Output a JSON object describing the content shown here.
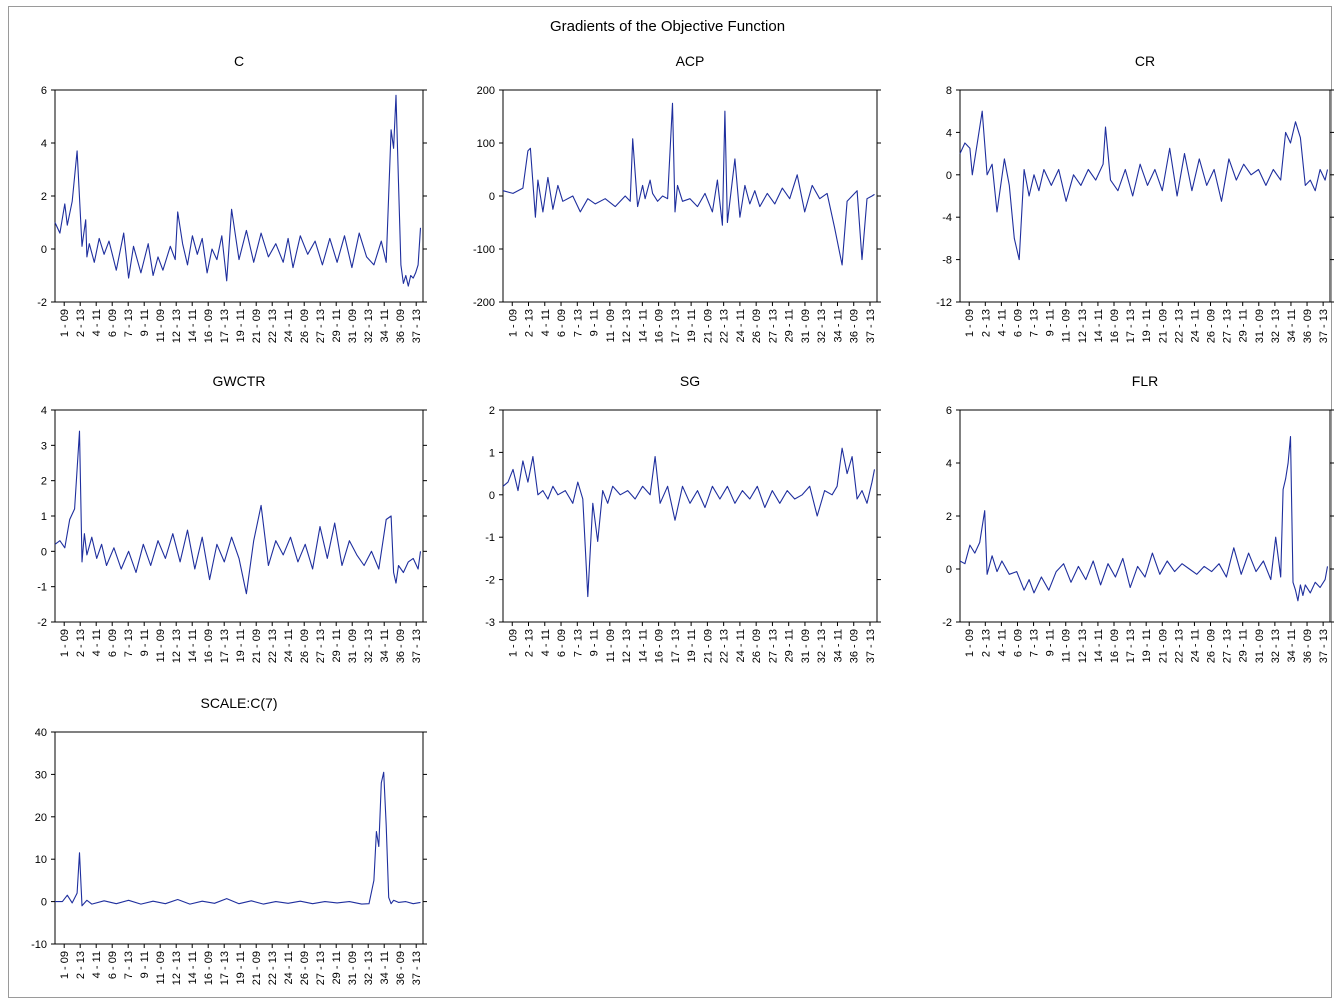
{
  "title": "Gradients of the Objective Function",
  "x_tick_labels": [
    "1 - 09",
    "2 - 13",
    "4 - 11",
    "6 - 09",
    "7 - 13",
    "9 - 11",
    "11 - 09",
    "12 - 13",
    "14 - 11",
    "16 - 09",
    "17 - 13",
    "19 - 11",
    "21 - 09",
    "22 - 13",
    "24 - 11",
    "26 - 09",
    "27 - 13",
    "29 - 11",
    "31 - 09",
    "32 - 13",
    "34 - 11",
    "36 - 09",
    "37 - 13"
  ],
  "chart_data": [
    {
      "type": "line",
      "title": "C",
      "ylim": [
        -2,
        6
      ],
      "yticks": [
        -2,
        0,
        2,
        4,
        6
      ],
      "color": "#1f2f9e",
      "series": [
        {
          "x_index": [
            0,
            4,
            8,
            10,
            14,
            18,
            22,
            25,
            26,
            28,
            32,
            36,
            40,
            44,
            50,
            56,
            60,
            64,
            70,
            76,
            80,
            84,
            88,
            94,
            98,
            100,
            104,
            108,
            112,
            116,
            120,
            124,
            128,
            132,
            136,
            140,
            144,
            150,
            156,
            162,
            168,
            174,
            180,
            186,
            190,
            194,
            200,
            206,
            212,
            218,
            224,
            230,
            236,
            242,
            248,
            254,
            260,
            266,
            270,
            274,
            276,
            278,
            280,
            282,
            284,
            286,
            288,
            290,
            292,
            294,
            296,
            298
          ],
          "values": [
            1.0,
            0.6,
            1.7,
            0.9,
            1.8,
            3.7,
            0.1,
            1.1,
            -0.3,
            0.2,
            -0.5,
            0.4,
            -0.2,
            0.3,
            -0.8,
            0.6,
            -1.1,
            0.1,
            -0.9,
            0.2,
            -1.0,
            -0.3,
            -0.8,
            0.1,
            -0.4,
            1.4,
            0.2,
            -0.6,
            0.5,
            -0.2,
            0.4,
            -0.9,
            0.0,
            -0.4,
            0.5,
            -1.2,
            1.5,
            -0.4,
            0.7,
            -0.5,
            0.6,
            -0.3,
            0.2,
            -0.5,
            0.4,
            -0.7,
            0.5,
            -0.2,
            0.3,
            -0.6,
            0.4,
            -0.5,
            0.5,
            -0.7,
            0.6,
            -0.3,
            -0.6,
            0.3,
            -0.5,
            4.5,
            3.8,
            5.8,
            2.5,
            -0.6,
            -1.3,
            -1.0,
            -1.4,
            -1.0,
            -1.1,
            -0.9,
            -0.6,
            0.8
          ]
        }
      ]
    },
    {
      "type": "line",
      "title": "ACP",
      "ylim": [
        -200,
        200
      ],
      "yticks": [
        -200,
        -100,
        0,
        100,
        200
      ],
      "color": "#1f2f9e",
      "series": [
        {
          "x_index": [
            0,
            8,
            16,
            20,
            22,
            26,
            28,
            32,
            36,
            40,
            44,
            48,
            56,
            62,
            68,
            74,
            82,
            90,
            98,
            102,
            104,
            108,
            112,
            114,
            118,
            120,
            124,
            128,
            132,
            136,
            138,
            140,
            144,
            150,
            156,
            162,
            168,
            172,
            176,
            178,
            180,
            186,
            190,
            194,
            198,
            202,
            206,
            212,
            218,
            224,
            230,
            236,
            242,
            248,
            254,
            260,
            266,
            272,
            276,
            280,
            284,
            288,
            292,
            296,
            298
          ],
          "values": [
            10,
            5,
            15,
            85,
            90,
            -40,
            30,
            -30,
            35,
            -25,
            20,
            -10,
            0,
            -30,
            -5,
            -15,
            -5,
            -20,
            0,
            -10,
            108,
            -20,
            20,
            -5,
            30,
            5,
            -10,
            0,
            -5,
            175,
            -30,
            20,
            -10,
            -5,
            -20,
            5,
            -30,
            30,
            -55,
            160,
            -50,
            70,
            -40,
            20,
            -15,
            10,
            -20,
            5,
            -15,
            15,
            -5,
            40,
            -30,
            20,
            -5,
            5,
            -60,
            -130,
            -10,
            0,
            10,
            -120,
            -5,
            0,
            3
          ]
        }
      ]
    },
    {
      "type": "line",
      "title": "CR",
      "ylim": [
        -12,
        8
      ],
      "yticks": [
        -12,
        -8,
        -4,
        0,
        4,
        8
      ],
      "color": "#1f2f9e",
      "series": [
        {
          "x_index": [
            0,
            4,
            8,
            10,
            14,
            18,
            22,
            26,
            30,
            36,
            40,
            44,
            48,
            52,
            56,
            60,
            64,
            68,
            74,
            80,
            86,
            92,
            98,
            104,
            110,
            116,
            118,
            122,
            128,
            134,
            140,
            146,
            152,
            158,
            164,
            170,
            176,
            182,
            188,
            194,
            200,
            206,
            212,
            218,
            224,
            230,
            236,
            242,
            248,
            254,
            260,
            264,
            268,
            272,
            276,
            280,
            284,
            288,
            292,
            296,
            298
          ],
          "values": [
            2.0,
            3.0,
            2.5,
            0.0,
            3.0,
            6.0,
            0.0,
            1.0,
            -3.5,
            1.5,
            -1.0,
            -6.0,
            -8.0,
            0.5,
            -2.0,
            0.0,
            -1.5,
            0.5,
            -1.0,
            0.5,
            -2.5,
            0.0,
            -1.0,
            0.5,
            -0.5,
            1.0,
            4.5,
            -0.5,
            -1.5,
            0.5,
            -2.0,
            1.0,
            -1.0,
            0.5,
            -1.5,
            2.5,
            -2.0,
            2.0,
            -1.5,
            1.5,
            -1.0,
            0.5,
            -2.5,
            1.5,
            -0.5,
            1.0,
            0.0,
            0.5,
            -1.0,
            0.5,
            -0.5,
            4.0,
            3.0,
            5.0,
            3.5,
            -1.0,
            -0.5,
            -1.5,
            0.5,
            -0.5,
            0.5
          ]
        }
      ]
    },
    {
      "type": "line",
      "title": "GWCTR",
      "ylim": [
        -2,
        4
      ],
      "yticks": [
        -2,
        -1,
        0,
        1,
        2,
        3,
        4
      ],
      "color": "#1f2f9e",
      "series": [
        {
          "x_index": [
            0,
            4,
            8,
            12,
            16,
            20,
            22,
            24,
            26,
            30,
            34,
            38,
            42,
            48,
            54,
            60,
            66,
            72,
            78,
            84,
            90,
            96,
            102,
            108,
            114,
            120,
            126,
            132,
            138,
            144,
            150,
            156,
            162,
            168,
            174,
            180,
            186,
            192,
            198,
            204,
            210,
            216,
            222,
            228,
            234,
            240,
            246,
            252,
            258,
            264,
            270,
            274,
            276,
            278,
            280,
            284,
            288,
            292,
            296,
            298
          ],
          "values": [
            0.2,
            0.3,
            0.1,
            0.9,
            1.2,
            3.4,
            -0.3,
            0.5,
            -0.1,
            0.4,
            -0.2,
            0.2,
            -0.4,
            0.1,
            -0.5,
            0.0,
            -0.6,
            0.2,
            -0.4,
            0.3,
            -0.2,
            0.5,
            -0.3,
            0.6,
            -0.5,
            0.4,
            -0.8,
            0.2,
            -0.3,
            0.4,
            -0.2,
            -1.2,
            0.3,
            1.3,
            -0.4,
            0.3,
            -0.1,
            0.4,
            -0.3,
            0.2,
            -0.5,
            0.7,
            -0.2,
            0.8,
            -0.4,
            0.3,
            -0.1,
            -0.4,
            0.0,
            -0.5,
            0.9,
            1.0,
            -0.6,
            -0.9,
            -0.4,
            -0.6,
            -0.3,
            -0.2,
            -0.5,
            0.0
          ]
        }
      ]
    },
    {
      "type": "line",
      "title": "SG",
      "ylim": [
        -3,
        2
      ],
      "yticks": [
        -3,
        -2,
        -1,
        0,
        1,
        2
      ],
      "color": "#1f2f9e",
      "series": [
        {
          "x_index": [
            0,
            4,
            8,
            12,
            16,
            20,
            24,
            28,
            32,
            36,
            40,
            44,
            50,
            56,
            60,
            64,
            68,
            72,
            76,
            80,
            84,
            88,
            94,
            100,
            106,
            112,
            118,
            122,
            126,
            132,
            138,
            144,
            150,
            156,
            162,
            168,
            174,
            180,
            186,
            192,
            198,
            204,
            210,
            216,
            222,
            228,
            234,
            240,
            246,
            252,
            258,
            264,
            268,
            272,
            276,
            280,
            284,
            288,
            292,
            296,
            298
          ],
          "values": [
            0.2,
            0.3,
            0.6,
            0.1,
            0.8,
            0.3,
            0.9,
            0.0,
            0.1,
            -0.1,
            0.2,
            0.0,
            0.1,
            -0.2,
            0.3,
            -0.1,
            -2.4,
            -0.2,
            -1.1,
            0.1,
            -0.2,
            0.2,
            0.0,
            0.1,
            -0.1,
            0.2,
            0.0,
            0.9,
            -0.2,
            0.2,
            -0.6,
            0.2,
            -0.2,
            0.1,
            -0.3,
            0.2,
            -0.1,
            0.2,
            -0.2,
            0.1,
            -0.1,
            0.2,
            -0.3,
            0.1,
            -0.2,
            0.1,
            -0.1,
            0.0,
            0.2,
            -0.5,
            0.1,
            0.0,
            0.2,
            1.1,
            0.5,
            0.9,
            -0.1,
            0.1,
            -0.2,
            0.3,
            0.6
          ]
        }
      ]
    },
    {
      "type": "line",
      "title": "FLR",
      "ylim": [
        -2,
        6
      ],
      "yticks": [
        -2,
        0,
        2,
        4,
        6
      ],
      "color": "#1f2f9e",
      "series": [
        {
          "x_index": [
            0,
            4,
            8,
            12,
            16,
            20,
            22,
            26,
            30,
            34,
            40,
            46,
            52,
            56,
            60,
            66,
            72,
            78,
            84,
            90,
            96,
            102,
            108,
            114,
            120,
            126,
            132,
            138,
            144,
            150,
            156,
            162,
            168,
            174,
            180,
            186,
            192,
            198,
            204,
            210,
            216,
            222,
            228,
            234,
            240,
            246,
            252,
            256,
            260,
            262,
            264,
            266,
            268,
            270,
            272,
            274,
            276,
            278,
            280,
            284,
            288,
            292,
            296,
            298
          ],
          "values": [
            0.3,
            0.2,
            0.9,
            0.6,
            1.0,
            2.2,
            -0.2,
            0.5,
            -0.1,
            0.3,
            -0.2,
            -0.1,
            -0.8,
            -0.4,
            -0.9,
            -0.3,
            -0.8,
            -0.1,
            0.2,
            -0.5,
            0.1,
            -0.4,
            0.3,
            -0.6,
            0.2,
            -0.3,
            0.4,
            -0.7,
            0.1,
            -0.3,
            0.6,
            -0.2,
            0.3,
            -0.1,
            0.2,
            0.0,
            -0.2,
            0.1,
            -0.1,
            0.2,
            -0.3,
            0.8,
            -0.2,
            0.6,
            -0.1,
            0.3,
            -0.4,
            1.2,
            -0.3,
            3.0,
            3.4,
            4.0,
            5.0,
            -0.5,
            -0.8,
            -1.2,
            -0.6,
            -1.0,
            -0.6,
            -0.9,
            -0.5,
            -0.7,
            -0.4,
            0.1
          ]
        }
      ]
    },
    {
      "type": "line",
      "title": "SCALE:C(7)",
      "ylim": [
        -10,
        40
      ],
      "yticks": [
        -10,
        0,
        10,
        20,
        30,
        40
      ],
      "color": "#1f2f9e",
      "series": [
        {
          "x_index": [
            0,
            6,
            10,
            14,
            18,
            20,
            22,
            26,
            30,
            40,
            50,
            60,
            70,
            80,
            90,
            100,
            110,
            120,
            130,
            140,
            150,
            160,
            170,
            180,
            190,
            200,
            210,
            220,
            230,
            240,
            250,
            256,
            260,
            262,
            264,
            266,
            268,
            270,
            272,
            274,
            276,
            280,
            286,
            292,
            298
          ],
          "values": [
            0.0,
            0.0,
            1.5,
            -0.3,
            2.0,
            11.5,
            -1.0,
            0.3,
            -0.6,
            0.2,
            -0.5,
            0.3,
            -0.6,
            0.1,
            -0.5,
            0.5,
            -0.6,
            0.1,
            -0.4,
            0.7,
            -0.5,
            0.2,
            -0.6,
            0.0,
            -0.4,
            0.1,
            -0.5,
            0.0,
            -0.3,
            0.0,
            -0.6,
            -0.5,
            5.0,
            16.5,
            13.0,
            28.0,
            30.5,
            18.0,
            1.0,
            -0.5,
            0.3,
            -0.2,
            0.0,
            -0.5,
            -0.2
          ]
        }
      ]
    }
  ]
}
